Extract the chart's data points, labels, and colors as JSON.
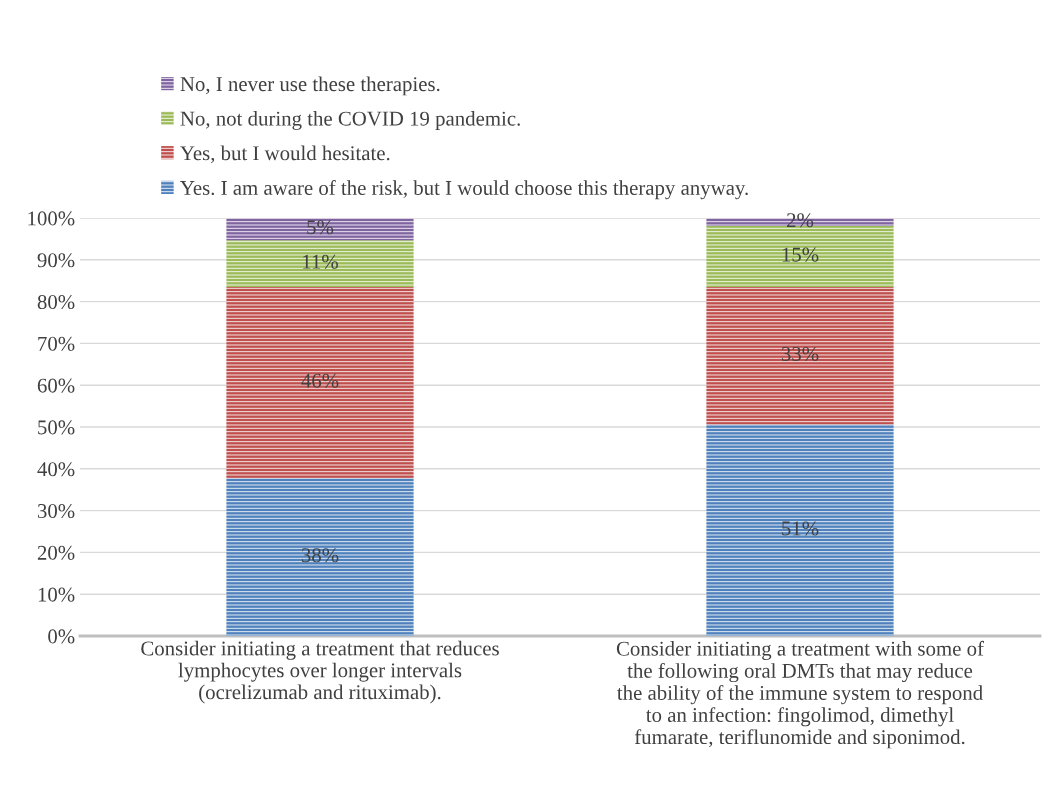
{
  "chart_data": {
    "type": "bar",
    "stacked": true,
    "categories": [
      "Consider initiating a treatment that reduces\nlymphocytes over longer intervals\n(ocrelizumab and rituximab).",
      "Consider initiating a treatment with some of\nthe following oral DMTs that may reduce\nthe ability of the immune system to respond\nto an infection: fingolimod, dimethyl\nfumarate, teriflunomide and siponimod."
    ],
    "series": [
      {
        "name": "Yes. I am aware of the risk, but I would choose this therapy anyway.",
        "color": "#4f81bd",
        "values": [
          37.8,
          50.6
        ],
        "value_labels": [
          "38%",
          "51%"
        ]
      },
      {
        "name": "Yes, but I would hesitate.",
        "color": "#c0504d",
        "values": [
          45.7,
          32.9
        ],
        "value_labels": [
          "46%",
          "33%"
        ]
      },
      {
        "name": "No, not during the COVID 19 pandemic.",
        "color": "#9bbb59",
        "values": [
          11.2,
          14.6
        ],
        "value_labels": [
          "11%",
          "15%"
        ]
      },
      {
        "name": "No, I never use these therapies.",
        "color": "#8064a2",
        "values": [
          5.3,
          1.9
        ],
        "value_labels": [
          "5%",
          "2%"
        ]
      }
    ],
    "ylim": [
      0,
      100
    ],
    "yticks": [
      {
        "value": 0,
        "label": "0%"
      },
      {
        "value": 10,
        "label": "10%"
      },
      {
        "value": 20,
        "label": "20%"
      },
      {
        "value": 30,
        "label": "30%"
      },
      {
        "value": 40,
        "label": "40%"
      },
      {
        "value": 50,
        "label": "50%"
      },
      {
        "value": 60,
        "label": "60%"
      },
      {
        "value": 70,
        "label": "70%"
      },
      {
        "value": 80,
        "label": "80%"
      },
      {
        "value": 90,
        "label": "90%"
      },
      {
        "value": 100,
        "label": "100%"
      }
    ],
    "grid": "y",
    "legend": "top"
  }
}
